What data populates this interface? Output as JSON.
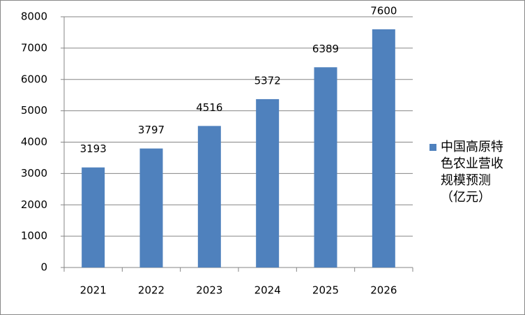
{
  "chart_data": {
    "type": "bar",
    "categories": [
      "2021",
      "2022",
      "2023",
      "2024",
      "2025",
      "2026"
    ],
    "series": [
      {
        "name": "中国高原特色农业营收规模预测（亿元）",
        "color": "#4f81bd",
        "values": [
          3193,
          3797,
          4516,
          5372,
          6389,
          7600
        ]
      }
    ],
    "ylim": [
      0,
      8000
    ],
    "yticks": [
      0,
      1000,
      2000,
      3000,
      4000,
      5000,
      6000,
      7000,
      8000
    ],
    "grid": true,
    "legend": "right"
  }
}
